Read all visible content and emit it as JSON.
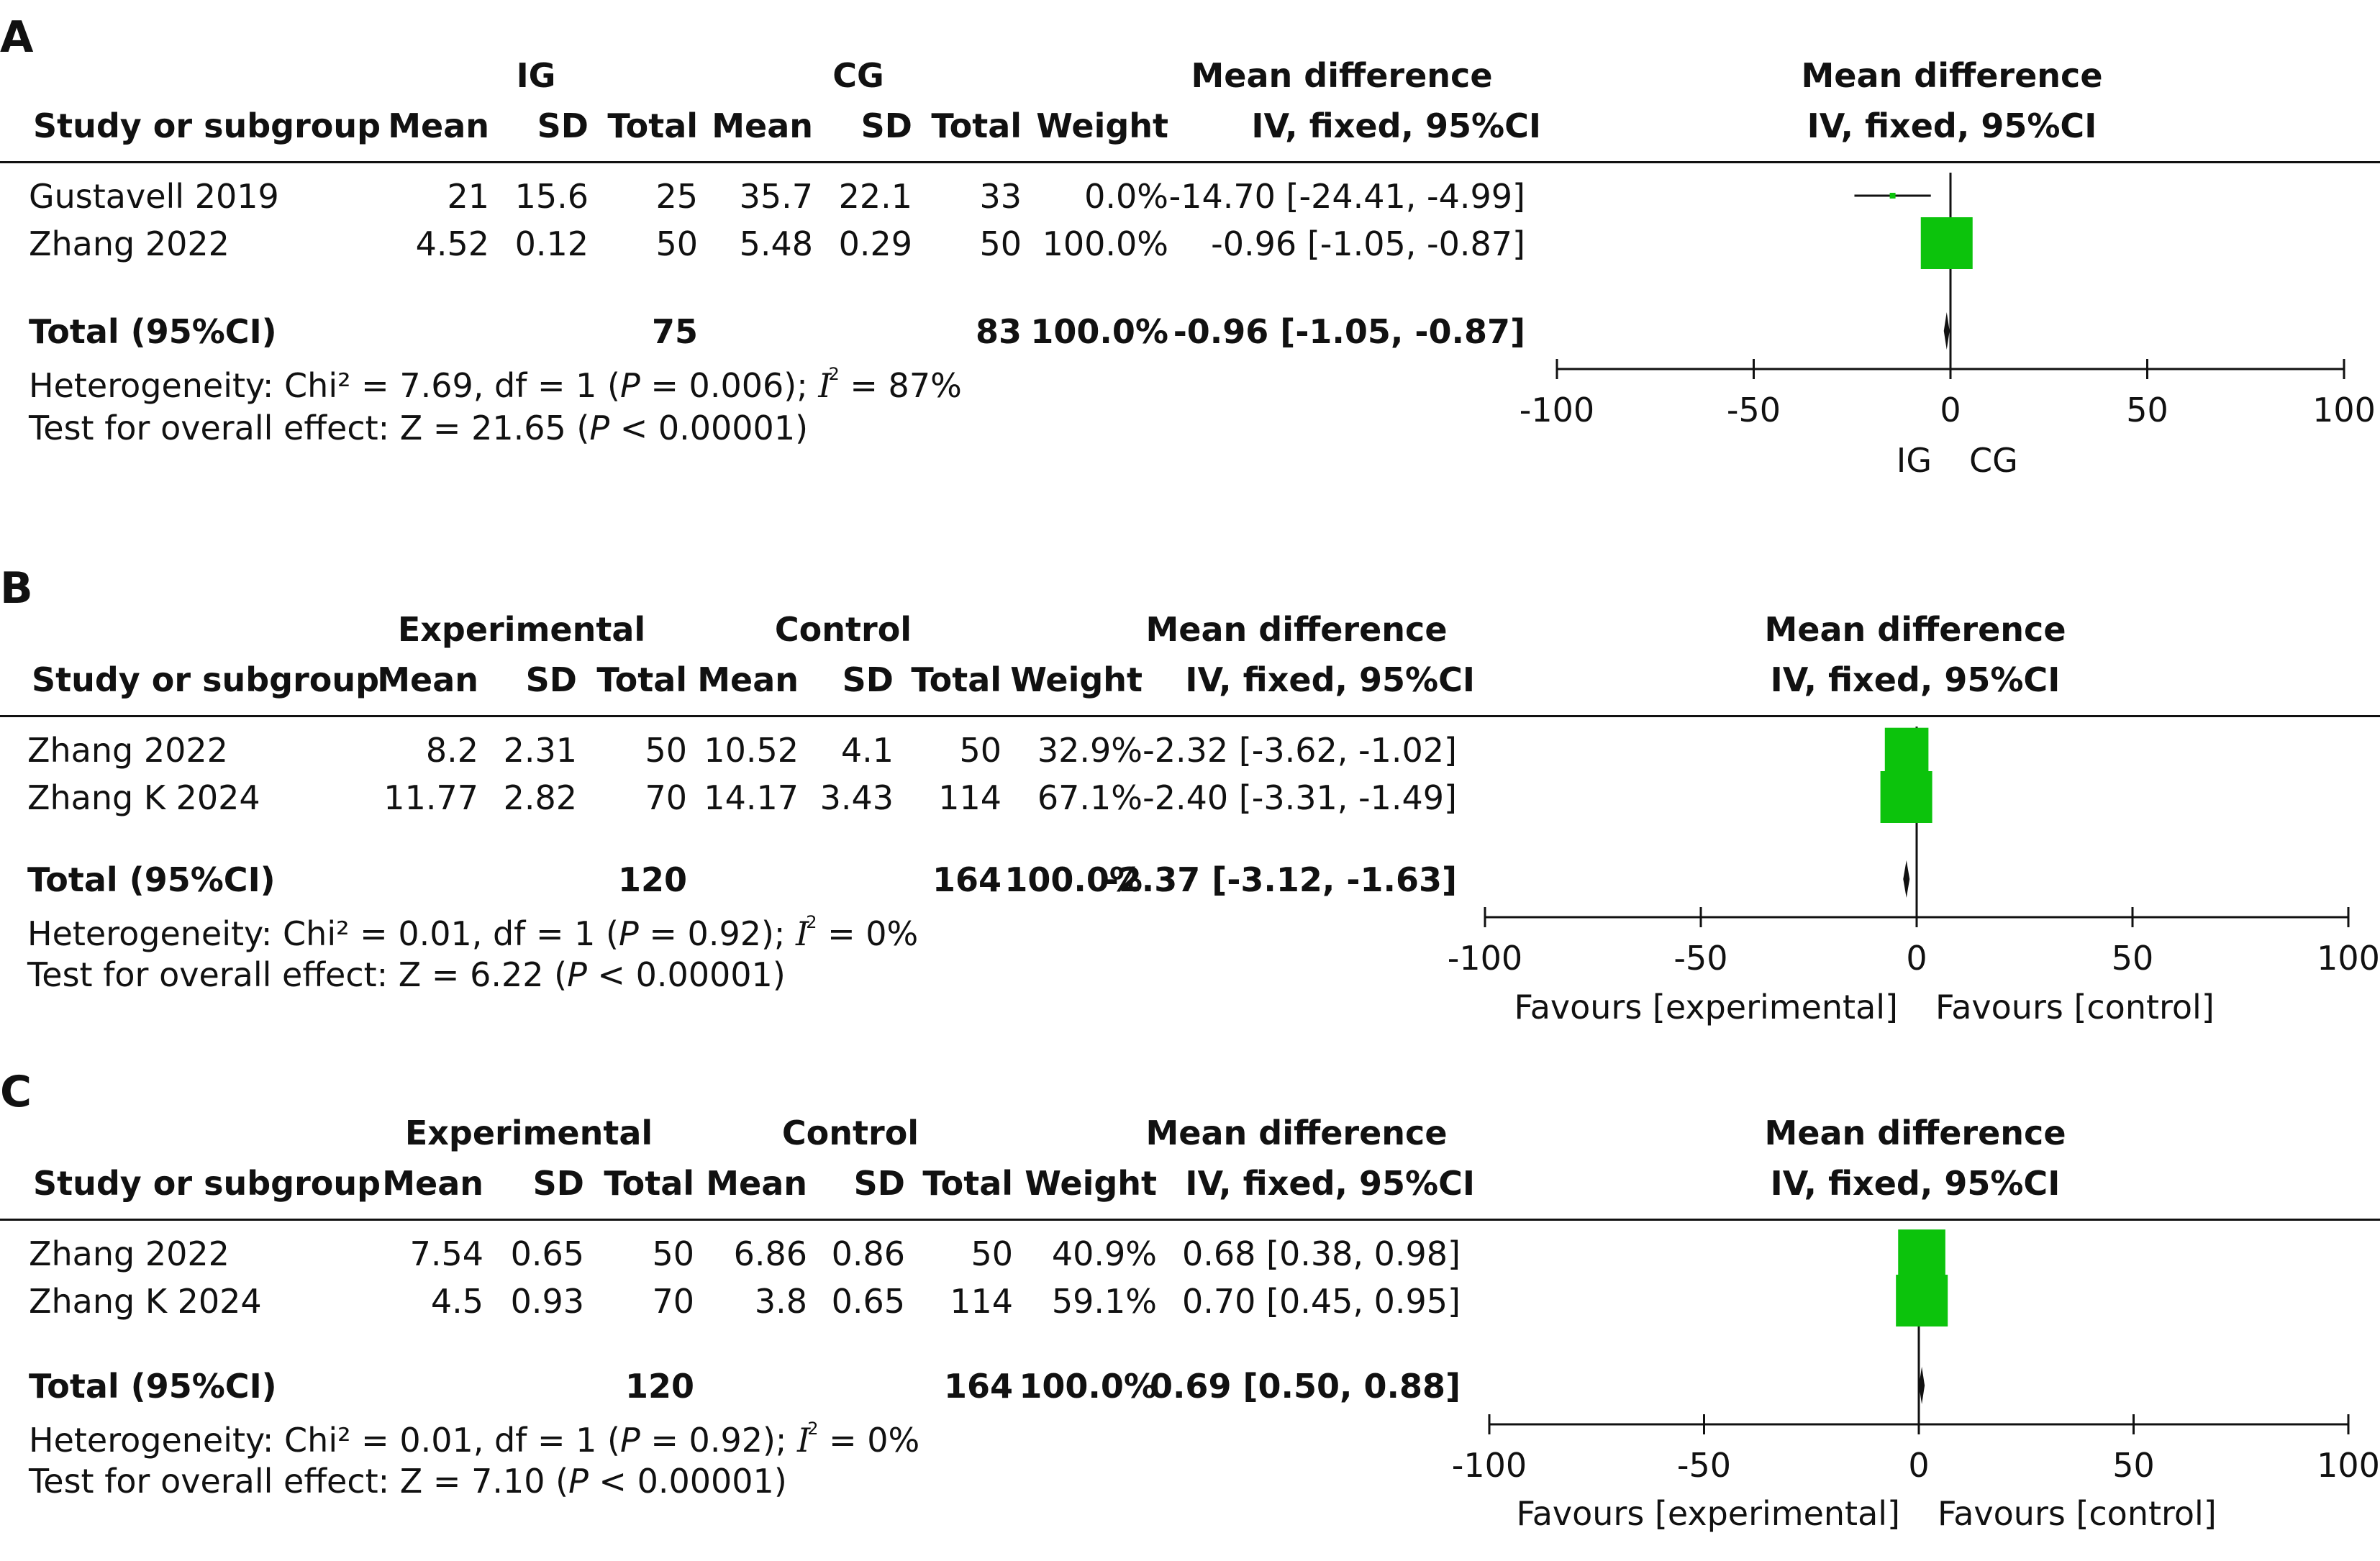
{
  "colors": {
    "box": "#0cc30c",
    "line": "#111111",
    "diamond": "#111111"
  },
  "panels": [
    {
      "label": "A",
      "group1": "IG",
      "group2": "CG",
      "hdr": {
        "study": "Study or subgroup",
        "mean": "Mean",
        "sd": "SD",
        "total": "Total",
        "weight": "Weight",
        "md1": "Mean difference",
        "md2": "IV, fixed, 95%CI"
      },
      "rows": [
        {
          "name": "Gustavell 2019",
          "m1": "21",
          "sd1": "15.6",
          "n1": "25",
          "m2": "35.7",
          "sd2": "22.1",
          "n2": "33",
          "weight": "0.0%",
          "ci": "-14.70 [-24.41, -4.99]"
        },
        {
          "name": "Zhang 2022",
          "m1": "4.52",
          "sd1": "0.12",
          "n1": "50",
          "m2": "5.48",
          "sd2": "0.29",
          "n2": "50",
          "weight": "100.0%",
          "ci": "-0.96 [-1.05, -0.87]"
        }
      ],
      "total": {
        "label": "Total (95%CI)",
        "n1": "75",
        "n2": "83",
        "weight": "100.0%",
        "ci": "-0.96 [-1.05, -0.87]"
      },
      "het": {
        "pre": "Heterogeneity: Chi² = 7.69, df = 1 (",
        "p": "P",
        "mid": " = 0.006); ",
        "i": "I",
        "sup": "2",
        "post": " = 87%"
      },
      "overall": {
        "pre": "Test for overall effect: Z = 21.65 (",
        "p": "P",
        "post": " < 0.00001)"
      },
      "favours_left": "IG",
      "favours_right": "CG"
    },
    {
      "label": "B",
      "group1": "Experimental",
      "group2": "Control",
      "hdr": {
        "study": "Study or subgroup",
        "mean": "Mean",
        "sd": "SD",
        "total": "Total",
        "weight": "Weight",
        "md1": "Mean difference",
        "md2": "IV, fixed, 95%CI"
      },
      "rows": [
        {
          "name": "Zhang 2022",
          "m1": "8.2",
          "sd1": "2.31",
          "n1": "50",
          "m2": "10.52",
          "sd2": "4.1",
          "n2": "50",
          "weight": "32.9%",
          "ci": "-2.32 [-3.62, -1.02]"
        },
        {
          "name": "Zhang K 2024",
          "m1": "11.77",
          "sd1": "2.82",
          "n1": "70",
          "m2": "14.17",
          "sd2": "3.43",
          "n2": "114",
          "weight": "67.1%",
          "ci": "-2.40 [-3.31, -1.49]"
        }
      ],
      "total": {
        "label": "Total (95%CI)",
        "n1": "120",
        "n2": "164",
        "weight": "100.0%",
        "ci": "-2.37 [-3.12, -1.63]"
      },
      "het": {
        "pre": "Heterogeneity: Chi² = 0.01, df = 1 (",
        "p": "P",
        "mid": " = 0.92); ",
        "i": "I",
        "sup": "2",
        "post": " = 0%"
      },
      "overall": {
        "pre": "Test for overall effect: Z = 6.22 (",
        "p": "P",
        "post": " < 0.00001)"
      },
      "favours_left": "Favours [experimental]",
      "favours_right": "Favours [control]"
    },
    {
      "label": "C",
      "group1": "Experimental",
      "group2": "Control",
      "hdr": {
        "study": "Study or subgroup",
        "mean": "Mean",
        "sd": "SD",
        "total": "Total",
        "weight": "Weight",
        "md1": "Mean difference",
        "md2": "IV, fixed, 95%CI"
      },
      "rows": [
        {
          "name": "Zhang 2022",
          "m1": "7.54",
          "sd1": "0.65",
          "n1": "50",
          "m2": "6.86",
          "sd2": "0.86",
          "n2": "50",
          "weight": "40.9%",
          "ci": "0.68 [0.38, 0.98]"
        },
        {
          "name": "Zhang K 2024",
          "m1": "4.5",
          "sd1": "0.93",
          "n1": "70",
          "m2": "3.8",
          "sd2": "0.65",
          "n2": "114",
          "weight": "59.1%",
          "ci": "0.70 [0.45, 0.95]"
        }
      ],
      "total": {
        "label": "Total (95%CI)",
        "n1": "120",
        "n2": "164",
        "weight": "100.0%",
        "ci": "0.69 [0.50, 0.88]"
      },
      "het": {
        "pre": "Heterogeneity: Chi² = 0.01, df = 1 (",
        "p": "P",
        "mid": " = 0.92); ",
        "i": "I",
        "sup": "2",
        "post": " = 0%"
      },
      "overall": {
        "pre": "Test for overall effect: Z = 7.10 (",
        "p": "P",
        "post": " < 0.00001)"
      },
      "favours_left": "Favours [experimental]",
      "favours_right": "Favours [control]"
    }
  ],
  "chart_data": [
    {
      "type": "forest",
      "title": "Mean difference IV, fixed, 95%CI",
      "xlim": [
        -100,
        100
      ],
      "ticks": [
        -100,
        -50,
        0,
        50,
        100
      ],
      "tick_labels": [
        "-100",
        "-50",
        "0",
        "50",
        "100"
      ],
      "studies": [
        {
          "name": "Gustavell 2019",
          "md": -14.7,
          "lo": -24.41,
          "hi": -4.99,
          "weight": 0.0
        },
        {
          "name": "Zhang 2022",
          "md": -0.96,
          "lo": -1.05,
          "hi": -0.87,
          "weight": 100.0
        }
      ],
      "pooled": {
        "md": -0.96,
        "lo": -1.05,
        "hi": -0.87
      }
    },
    {
      "type": "forest",
      "title": "Mean difference IV, fixed, 95%CI",
      "xlim": [
        -100,
        100
      ],
      "ticks": [
        -100,
        -50,
        0,
        50,
        100
      ],
      "tick_labels": [
        "-100",
        "-50",
        "0",
        "50",
        "100"
      ],
      "studies": [
        {
          "name": "Zhang 2022",
          "md": -2.32,
          "lo": -3.62,
          "hi": -1.02,
          "weight": 32.9
        },
        {
          "name": "Zhang K 2024",
          "md": -2.4,
          "lo": -3.31,
          "hi": -1.49,
          "weight": 67.1
        }
      ],
      "pooled": {
        "md": -2.37,
        "lo": -3.12,
        "hi": -1.63
      }
    },
    {
      "type": "forest",
      "title": "Mean difference IV, fixed, 95%CI",
      "xlim": [
        -100,
        100
      ],
      "ticks": [
        -100,
        -50,
        0,
        50,
        100
      ],
      "tick_labels": [
        "-100",
        "-50",
        "0",
        "50",
        "100"
      ],
      "studies": [
        {
          "name": "Zhang 2022",
          "md": 0.68,
          "lo": 0.38,
          "hi": 0.98,
          "weight": 40.9
        },
        {
          "name": "Zhang K 2024",
          "md": 0.7,
          "lo": 0.45,
          "hi": 0.95,
          "weight": 59.1
        }
      ],
      "pooled": {
        "md": 0.69,
        "lo": 0.5,
        "hi": 0.88
      }
    }
  ]
}
